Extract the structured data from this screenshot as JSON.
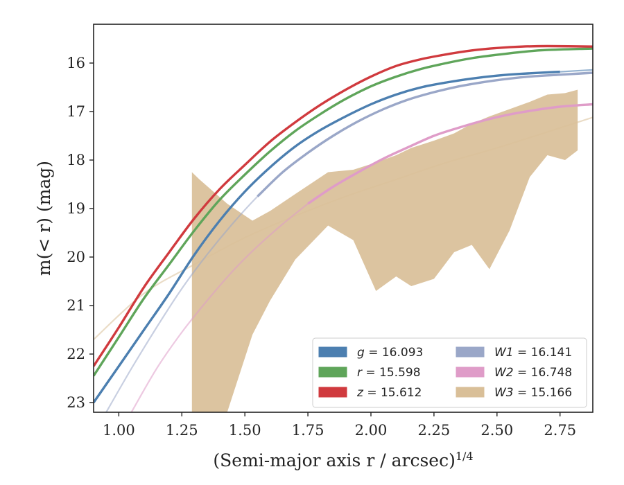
{
  "chart_data": {
    "type": "line",
    "xlabel": "(Semi-major axis r / arcsec)",
    "xlabel_sup": "1/4",
    "ylabel": "m(< r) (mag)",
    "xlim": [
      0.9,
      2.88
    ],
    "ylim": [
      23.2,
      15.2
    ],
    "y_inverted": true,
    "grid": false,
    "legend_position": "lower-right",
    "x_ticks": [
      1.0,
      1.25,
      1.5,
      1.75,
      2.0,
      2.25,
      2.5,
      2.75
    ],
    "x_tick_labels": [
      "1.00",
      "1.25",
      "1.50",
      "1.75",
      "2.00",
      "2.25",
      "2.50",
      "2.75"
    ],
    "y_ticks": [
      16,
      17,
      18,
      19,
      20,
      21,
      22,
      23
    ],
    "y_tick_labels": [
      "16",
      "17",
      "18",
      "19",
      "20",
      "21",
      "22",
      "23"
    ],
    "series": [
      {
        "name": "g = 16.093",
        "legend_var": "g",
        "legend_val": "= 16.093",
        "color": "#4c7fb0",
        "band_x": [
          0.9,
          1.0,
          1.1,
          1.2,
          1.3,
          1.4,
          1.5,
          1.6,
          1.7,
          1.8,
          1.9,
          2.0,
          2.1,
          2.2,
          2.3,
          2.4,
          2.5,
          2.6,
          2.75
        ],
        "band_mid": [
          23.0,
          22.25,
          21.5,
          20.75,
          19.95,
          19.25,
          18.65,
          18.15,
          17.72,
          17.38,
          17.1,
          16.85,
          16.65,
          16.5,
          16.4,
          16.32,
          16.26,
          16.22,
          16.18
        ],
        "line_x": [
          0.88,
          2.88
        ],
        "line_y": [
          23.4,
          16.1
        ],
        "faded_segment": [
          2.75,
          2.88
        ],
        "faded_y": [
          16.18,
          16.14
        ],
        "band_halfwidth": 0.03
      },
      {
        "name": "r = 15.598",
        "legend_var": "r",
        "legend_val": "= 15.598",
        "color": "#5fa55a",
        "band_x": [
          0.9,
          1.0,
          1.1,
          1.2,
          1.3,
          1.4,
          1.5,
          1.6,
          1.7,
          1.8,
          1.9,
          2.0,
          2.1,
          2.2,
          2.3,
          2.4,
          2.5,
          2.6,
          2.7,
          2.88
        ],
        "band_mid": [
          22.45,
          21.65,
          20.85,
          20.15,
          19.45,
          18.82,
          18.3,
          17.82,
          17.4,
          17.05,
          16.74,
          16.48,
          16.28,
          16.12,
          16.0,
          15.9,
          15.83,
          15.77,
          15.73,
          15.7
        ],
        "band_halfwidth": 0.04
      },
      {
        "name": "z = 15.612",
        "legend_var": "z",
        "legend_val": "= 15.612",
        "color": "#d03a3e",
        "band_x": [
          0.9,
          1.0,
          1.1,
          1.2,
          1.3,
          1.4,
          1.5,
          1.6,
          1.7,
          1.8,
          1.9,
          2.0,
          2.1,
          2.2,
          2.3,
          2.4,
          2.5,
          2.6,
          2.7,
          2.88
        ],
        "band_mid": [
          22.25,
          21.45,
          20.62,
          19.9,
          19.2,
          18.6,
          18.1,
          17.62,
          17.22,
          16.86,
          16.55,
          16.28,
          16.06,
          15.92,
          15.82,
          15.74,
          15.69,
          15.66,
          15.65,
          15.66
        ],
        "band_halfwidth": 0.05
      },
      {
        "name": "W1 = 16.141",
        "legend_var": "W1",
        "legend_val": "= 16.141",
        "color": "#9aa7c8",
        "band_x": [
          0.95,
          1.05,
          1.15,
          1.25,
          1.35,
          1.45,
          1.55,
          1.65,
          1.75,
          1.85,
          1.95,
          2.05,
          2.15,
          2.25,
          2.35,
          2.45,
          2.55,
          2.65,
          2.75,
          2.88
        ],
        "band_mid": [
          23.2,
          22.3,
          21.45,
          20.65,
          19.95,
          19.32,
          18.75,
          18.25,
          17.85,
          17.5,
          17.2,
          16.95,
          16.75,
          16.6,
          16.48,
          16.39,
          16.32,
          16.27,
          16.24,
          16.2
        ],
        "fade_before": 1.6,
        "band_halfwidth": 0.03
      },
      {
        "name": "W2 = 16.748",
        "legend_var": "W2",
        "legend_val": "= 16.748",
        "color": "#df9cc8",
        "band_x": [
          1.05,
          1.15,
          1.25,
          1.35,
          1.45,
          1.55,
          1.65,
          1.75,
          1.85,
          1.95,
          2.05,
          2.15,
          2.25,
          2.35,
          2.45,
          2.55,
          2.65,
          2.75,
          2.88
        ],
        "band_mid": [
          23.2,
          22.3,
          21.55,
          20.9,
          20.3,
          19.78,
          19.32,
          18.9,
          18.55,
          18.25,
          17.97,
          17.73,
          17.5,
          17.33,
          17.18,
          17.06,
          16.97,
          16.9,
          16.85
        ],
        "fade_before": 1.75,
        "band_halfwidth": 0.03
      },
      {
        "name": "W3 = 15.166",
        "legend_var": "W3",
        "legend_val": "= 15.166",
        "color": "#d9bf98",
        "faint_line_x": [
          0.9,
          1.1,
          1.3,
          1.5,
          1.7,
          1.9,
          2.1,
          2.3,
          2.5,
          2.7,
          2.88
        ],
        "faint_line_y": [
          21.7,
          20.75,
          20.15,
          19.6,
          19.15,
          18.75,
          18.4,
          18.05,
          17.75,
          17.42,
          17.12
        ],
        "band_x": [
          1.29,
          1.32,
          1.43,
          1.53,
          1.6,
          1.7,
          1.83,
          1.93,
          2.02,
          2.1,
          2.16,
          2.25,
          2.33,
          2.4,
          2.47,
          2.55,
          2.63,
          2.7,
          2.77,
          2.82
        ],
        "band_upper": [
          18.25,
          18.4,
          18.9,
          19.25,
          19.05,
          18.7,
          18.25,
          18.2,
          18.05,
          17.9,
          17.75,
          17.6,
          17.45,
          17.25,
          17.1,
          16.95,
          16.8,
          16.65,
          16.62,
          16.55
        ],
        "band_lower": [
          23.2,
          23.2,
          23.2,
          21.6,
          20.9,
          20.05,
          19.35,
          19.65,
          20.7,
          20.4,
          20.6,
          20.45,
          19.9,
          19.75,
          20.25,
          19.45,
          18.35,
          17.9,
          18.0,
          17.8
        ],
        "lower_x_extra": [
          1.39,
          1.29
        ],
        "lower_y_extra": [
          23.2,
          23.2
        ]
      }
    ]
  }
}
